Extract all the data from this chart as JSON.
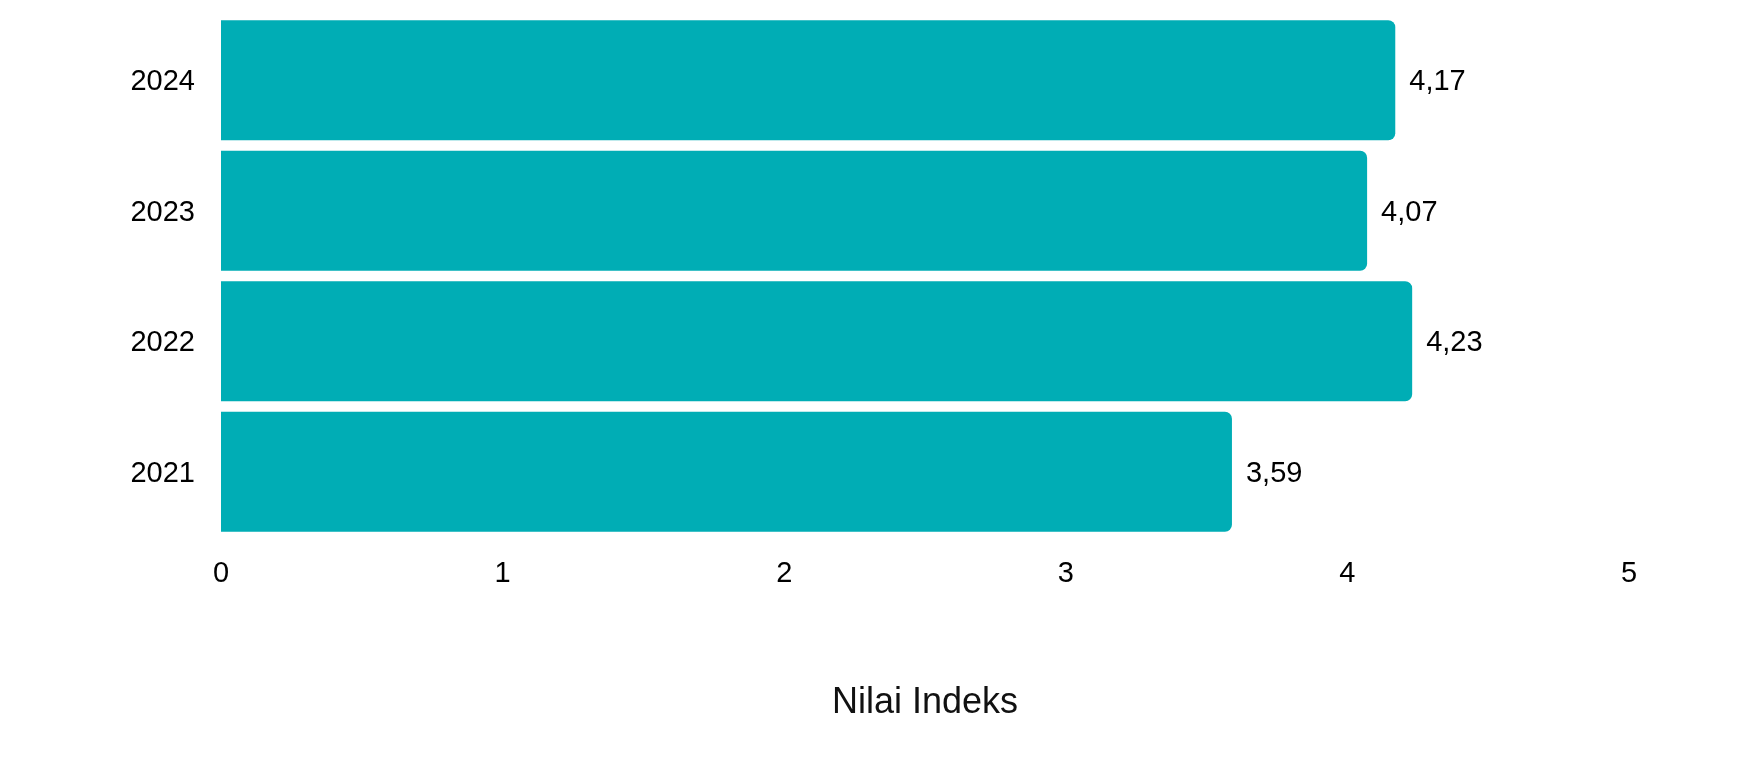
{
  "chart_data": {
    "type": "bar",
    "orientation": "horizontal",
    "xlabel": "Nilai Indeks",
    "categories": [
      "2024",
      "2023",
      "2022",
      "2021"
    ],
    "values": [
      4.17,
      4.07,
      4.23,
      3.59
    ],
    "color": "#00adb5",
    "value_labels": [
      "4,17",
      "4,07",
      "4,23",
      "3,59"
    ],
    "xlim": [
      0,
      5
    ],
    "xticks": [
      0,
      1,
      2,
      3,
      4,
      5
    ]
  }
}
